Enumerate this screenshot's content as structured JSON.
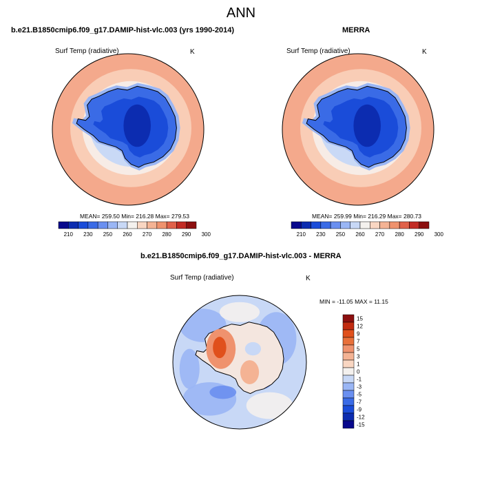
{
  "title": "ANN",
  "panels": [
    {
      "case_title": "b.e21.B1850cmip6.f09_g17.DAMIP-hist-vlc.003 (yrs 1990-2014)",
      "variable": "Surf Temp (radiative)",
      "units": "K",
      "stats": "MEAN= 259.50  Min= 216.28  Max= 279.53"
    },
    {
      "case_title": "MERRA",
      "variable": "Surf Temp (radiative)",
      "units": "K",
      "stats": "MEAN= 259.99  Min= 216.29  Max= 280.73"
    },
    {
      "case_title": "b.e21.B1850cmip6.f09_g17.DAMIP-hist-vlc.003 - MERRA",
      "variable": "Surf Temp (radiative)",
      "units": "K",
      "stats": "MIN = -11.05 MAX =  11.15"
    }
  ],
  "colorbars": {
    "abs": {
      "colors": [
        "#08088c",
        "#0c2cb0",
        "#1a4cd9",
        "#3a6be6",
        "#6a8ff0",
        "#9ab6f5",
        "#c8d8f6",
        "#f4f1ee",
        "#f9d6c2",
        "#f4b394",
        "#ef926e",
        "#e0614a",
        "#c22b24",
        "#8c0f0f"
      ],
      "labels": [
        "210",
        "230",
        "250",
        "260",
        "270",
        "280",
        "290",
        "300"
      ]
    },
    "diff": {
      "colors": [
        "#08088c",
        "#0c2cb0",
        "#1a4cd9",
        "#3a6be6",
        "#6a8ff0",
        "#9ab6f5",
        "#c8d8f6",
        "#f4f1ee",
        "#f9d6c2",
        "#f4b394",
        "#ef926e",
        "#e8703a",
        "#e0501c",
        "#c22b10",
        "#8c0f0f"
      ],
      "labels": [
        "15",
        "12",
        "9",
        "7",
        "5",
        "3",
        "1",
        "0",
        "-1",
        "-3",
        "-5",
        "-7",
        "-9",
        "-12",
        "-15"
      ]
    }
  },
  "chart_data": [
    {
      "type": "heatmap",
      "title": "b.e21.B1850cmip6.f09_g17.DAMIP-hist-vlc.003 (yrs 1990-2014)",
      "variable": "Surf Temp (radiative)",
      "units": "K",
      "projection": "south polar stereographic",
      "mean": 259.5,
      "min": 216.28,
      "max": 279.53,
      "colorbar_ticks": [
        210,
        230,
        250,
        260,
        270,
        280,
        290,
        300
      ]
    },
    {
      "type": "heatmap",
      "title": "MERRA",
      "variable": "Surf Temp (radiative)",
      "units": "K",
      "projection": "south polar stereographic",
      "mean": 259.99,
      "min": 216.29,
      "max": 280.73,
      "colorbar_ticks": [
        210,
        230,
        250,
        260,
        270,
        280,
        290,
        300
      ]
    },
    {
      "type": "heatmap",
      "title": "b.e21.B1850cmip6.f09_g17.DAMIP-hist-vlc.003 - MERRA",
      "variable": "Surf Temp (radiative)",
      "units": "K",
      "projection": "south polar stereographic",
      "min": -11.05,
      "max": 11.15,
      "colorbar_ticks": [
        15,
        12,
        9,
        7,
        5,
        3,
        1,
        0,
        -1,
        -3,
        -5,
        -7,
        -9,
        -12,
        -15
      ]
    }
  ]
}
